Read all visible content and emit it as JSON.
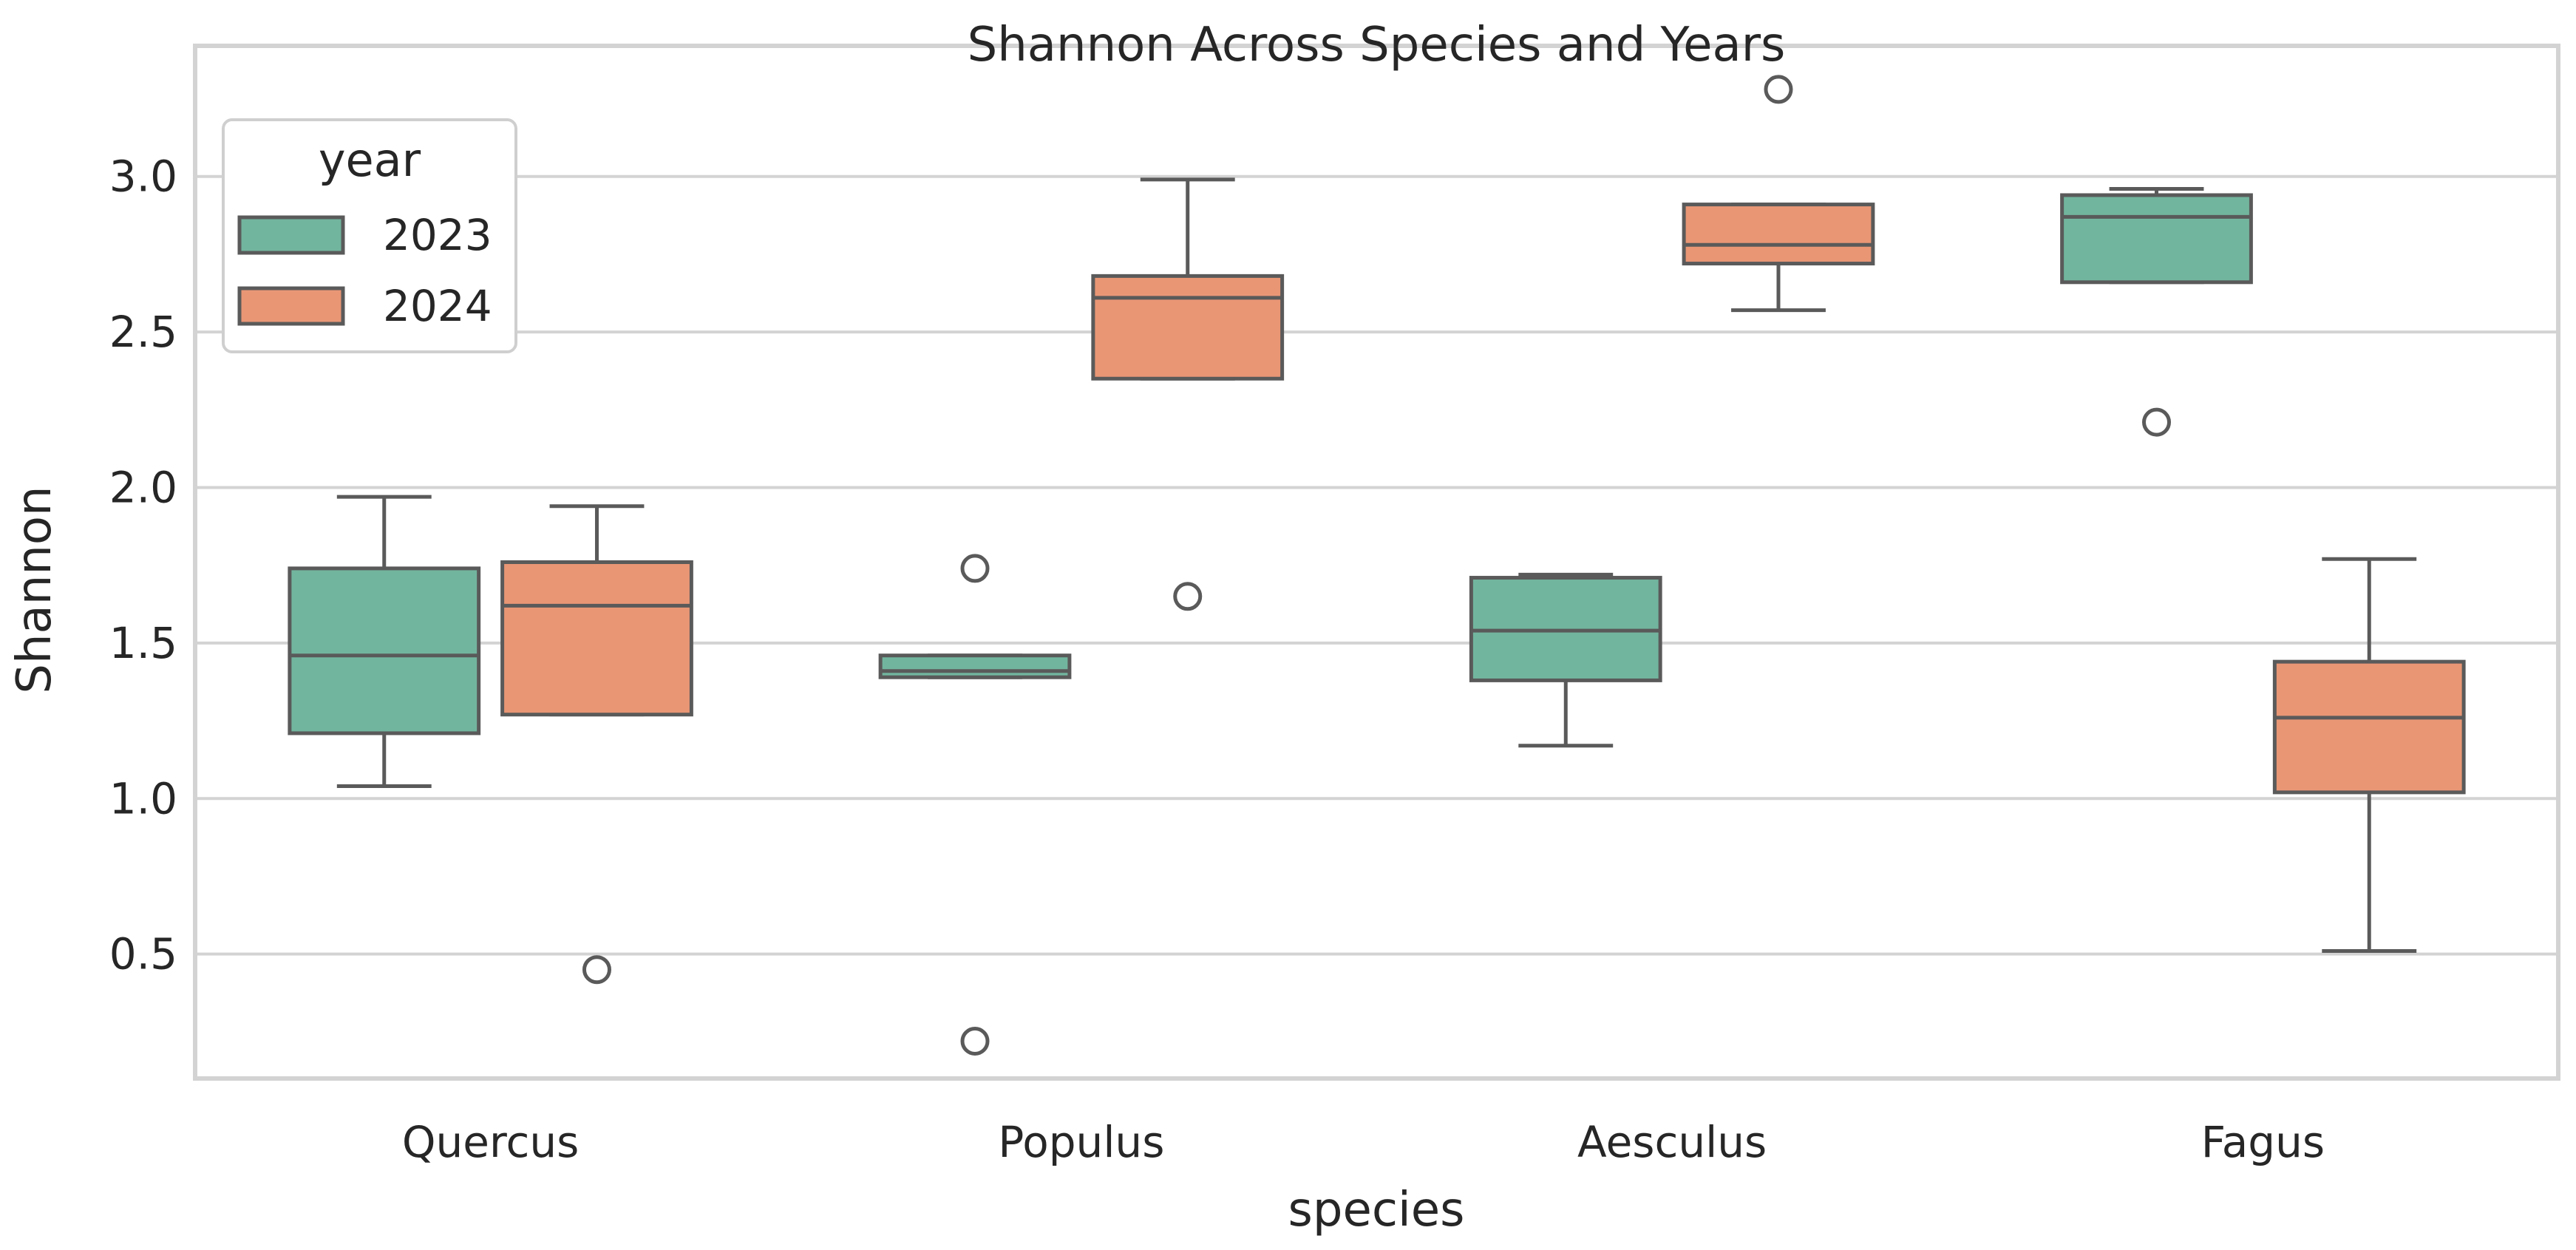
{
  "chart_data": {
    "type": "box",
    "title": "Shannon Across Species and Years",
    "xlabel": "species",
    "ylabel": "Shannon",
    "ylim": [
      0.1,
      3.42
    ],
    "yticks": [
      0.5,
      1.0,
      1.5,
      2.0,
      2.5,
      3.0
    ],
    "ytick_labels": [
      "0.5",
      "1.0",
      "1.5",
      "2.0",
      "2.5",
      "3.0"
    ],
    "categories": [
      "Quercus",
      "Populus",
      "Aesculus",
      "Fagus"
    ],
    "grid": true,
    "legend": {
      "title": "year",
      "position": "top-left"
    },
    "colors": {
      "line": "#5a5a5a",
      "grid": "#d3d3d3",
      "frame": "#d3d3d3"
    },
    "series": [
      {
        "name": "2023",
        "color": "#72b59e",
        "boxes": [
          {
            "category": "Quercus",
            "whisker_low": 1.04,
            "q1": 1.21,
            "median": 1.46,
            "q3": 1.74,
            "whisker_high": 1.97,
            "outliers": []
          },
          {
            "category": "Populus",
            "whisker_low": 1.39,
            "q1": 1.39,
            "median": 1.41,
            "q3": 1.46,
            "whisker_high": 1.46,
            "outliers": [
              1.74,
              0.22
            ]
          },
          {
            "category": "Aesculus",
            "whisker_low": 1.17,
            "q1": 1.38,
            "median": 1.54,
            "q3": 1.71,
            "whisker_high": 1.72,
            "outliers": []
          },
          {
            "category": "Fagus",
            "whisker_low": 2.66,
            "q1": 2.66,
            "median": 2.87,
            "q3": 2.94,
            "whisker_high": 2.96,
            "outliers": [
              2.21
            ]
          }
        ]
      },
      {
        "name": "2024",
        "color": "#e99675",
        "boxes": [
          {
            "category": "Quercus",
            "whisker_low": 1.27,
            "q1": 1.27,
            "median": 1.62,
            "q3": 1.76,
            "whisker_high": 1.94,
            "outliers": [
              0.45
            ]
          },
          {
            "category": "Populus",
            "whisker_low": 2.35,
            "q1": 2.35,
            "median": 2.61,
            "q3": 2.68,
            "whisker_high": 2.99,
            "outliers": [
              1.65
            ]
          },
          {
            "category": "Aesculus",
            "whisker_low": 2.57,
            "q1": 2.72,
            "median": 2.78,
            "q3": 2.91,
            "whisker_high": 2.91,
            "outliers": [
              3.28
            ]
          },
          {
            "category": "Fagus",
            "whisker_low": 0.51,
            "q1": 1.02,
            "median": 1.26,
            "q3": 1.44,
            "whisker_high": 1.77,
            "outliers": []
          }
        ]
      }
    ]
  }
}
